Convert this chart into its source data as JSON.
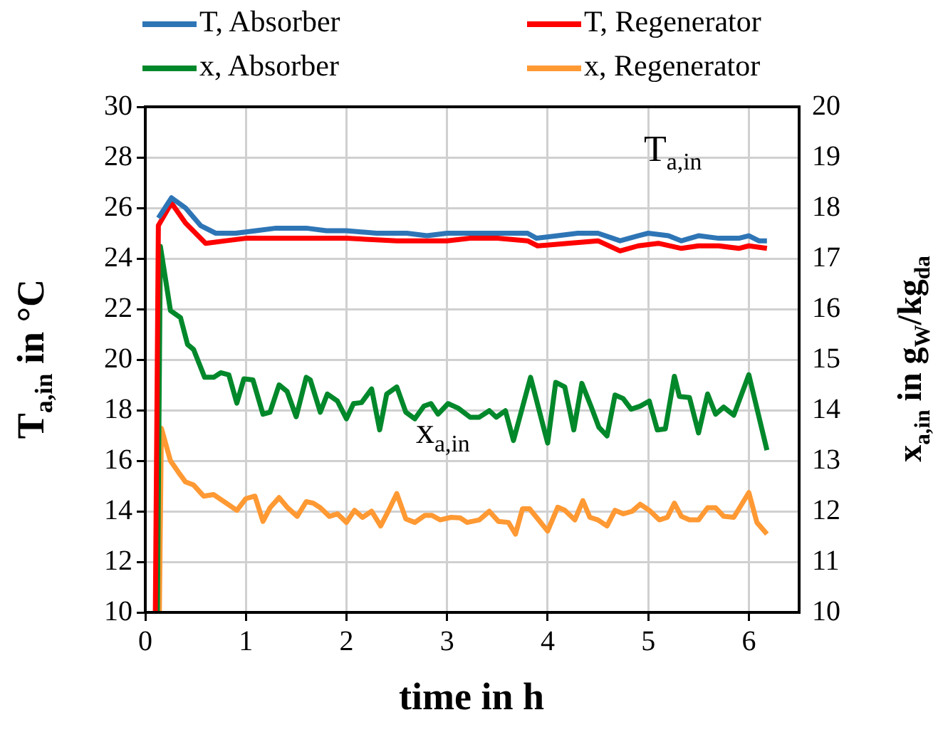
{
  "chart_data": {
    "type": "line",
    "xlabel": "time in h",
    "ylabel": "T$_{a,in}$ in °C",
    "y2label": "x$_{a,in}$ in g$_{W}$/kg$_{da}$",
    "xlim": [
      0,
      6.5
    ],
    "xticks": [
      0,
      1,
      2,
      3,
      4,
      5,
      6
    ],
    "ylim": [
      10,
      30
    ],
    "yticks": [
      10,
      12,
      14,
      16,
      18,
      20,
      22,
      24,
      26,
      28,
      30
    ],
    "y2lim": [
      10,
      20
    ],
    "y2ticks": [
      10,
      11,
      12,
      13,
      14,
      15,
      16,
      17,
      18,
      19,
      20
    ],
    "grid": true,
    "legend": "top",
    "marker": "none",
    "line_style": "solid",
    "annotations": [
      "T$_{a,in}$",
      "x$_{a,in}$"
    ],
    "series": [
      {
        "name": "T, Absorber",
        "color": "#2e75b6",
        "x": [
          0.13,
          0.26,
          0.4,
          0.55,
          0.7,
          0.9,
          1.1,
          1.3,
          1.6,
          1.8,
          2.0,
          2.3,
          2.6,
          2.8,
          3.0,
          3.23,
          3.4,
          3.6,
          3.8,
          3.89,
          4.1,
          4.3,
          4.5,
          4.72,
          4.9,
          5.0,
          5.2,
          5.33,
          5.5,
          5.7,
          5.9,
          6.0,
          6.1,
          6.18
        ],
        "values": [
          25.6,
          26.4,
          26.0,
          25.3,
          25.0,
          25.0,
          25.1,
          25.2,
          25.2,
          25.1,
          25.1,
          25.0,
          25.0,
          24.9,
          25.0,
          25.0,
          25.0,
          25.0,
          25.0,
          24.8,
          24.9,
          25.0,
          25.0,
          24.7,
          24.9,
          25.0,
          24.9,
          24.7,
          24.9,
          24.8,
          24.8,
          24.9,
          24.7,
          24.7
        ]
      },
      {
        "name": "T, Regenerator",
        "color": "#ff0000",
        "x": [
          0.1,
          0.13,
          0.26,
          0.4,
          0.6,
          0.8,
          1.0,
          1.5,
          2.0,
          2.5,
          3.0,
          3.23,
          3.5,
          3.8,
          3.9,
          4.2,
          4.5,
          4.72,
          4.9,
          5.1,
          5.33,
          5.5,
          5.7,
          5.9,
          6.0,
          6.18
        ],
        "values": [
          10,
          25.3,
          26.2,
          25.4,
          24.6,
          24.7,
          24.8,
          24.8,
          24.8,
          24.7,
          24.7,
          24.8,
          24.8,
          24.7,
          24.5,
          24.6,
          24.7,
          24.3,
          24.5,
          24.6,
          24.4,
          24.5,
          24.5,
          24.4,
          24.5,
          24.4
        ]
      },
      {
        "name": "x, Absorber",
        "color": "#00882b",
        "axis": "y2",
        "x": [
          0.12,
          0.15,
          0.25,
          0.35,
          0.42,
          0.48,
          0.59,
          0.68,
          0.75,
          0.83,
          0.91,
          0.98,
          1.07,
          1.17,
          1.24,
          1.33,
          1.41,
          1.5,
          1.6,
          1.64,
          1.74,
          1.81,
          1.91,
          2.0,
          2.07,
          2.15,
          2.25,
          2.33,
          2.4,
          2.5,
          2.59,
          2.68,
          2.77,
          2.84,
          2.91,
          3.01,
          3.11,
          3.23,
          3.32,
          3.42,
          3.49,
          3.58,
          3.66,
          3.83,
          4.0,
          4.08,
          4.17,
          4.26,
          4.34,
          4.43,
          4.51,
          4.59,
          4.67,
          4.75,
          4.83,
          4.92,
          5.01,
          5.09,
          5.17,
          5.26,
          5.31,
          5.41,
          5.5,
          5.59,
          5.67,
          5.75,
          5.85,
          6.0,
          6.18
        ],
        "values": [
          10,
          17.24,
          15.97,
          15.83,
          15.3,
          15.2,
          14.65,
          14.65,
          14.74,
          14.7,
          14.14,
          14.62,
          14.6,
          13.92,
          13.96,
          14.5,
          14.37,
          13.87,
          14.65,
          14.6,
          13.96,
          14.32,
          14.18,
          13.83,
          14.13,
          14.15,
          14.42,
          13.61,
          14.32,
          14.46,
          13.96,
          13.83,
          14.08,
          14.13,
          13.92,
          14.13,
          14.04,
          13.86,
          13.86,
          13.99,
          13.86,
          13.99,
          13.4,
          14.65,
          13.35,
          14.55,
          14.46,
          13.61,
          14.53,
          14.08,
          13.66,
          13.49,
          14.3,
          14.23,
          14.02,
          14.08,
          14.18,
          13.61,
          13.63,
          14.67,
          14.27,
          14.25,
          13.55,
          14.32,
          13.92,
          14.06,
          13.9,
          14.7,
          13.21
        ]
      },
      {
        "name": "x, Regenerator",
        "color": "#ff9933",
        "axis": "y2",
        "x": [
          0.14,
          0.16,
          0.25,
          0.33,
          0.4,
          0.48,
          0.58,
          0.68,
          0.79,
          0.91,
          1.0,
          1.09,
          1.17,
          1.24,
          1.33,
          1.41,
          1.51,
          1.6,
          1.67,
          1.74,
          1.83,
          1.91,
          2.0,
          2.08,
          2.16,
          2.25,
          2.34,
          2.42,
          2.5,
          2.59,
          2.68,
          2.78,
          2.85,
          2.93,
          3.04,
          3.13,
          3.2,
          3.32,
          3.42,
          3.51,
          3.61,
          3.68,
          3.75,
          3.82,
          4.0,
          4.1,
          4.17,
          4.27,
          4.35,
          4.42,
          4.5,
          4.59,
          4.67,
          4.75,
          4.84,
          4.92,
          5.01,
          5.11,
          5.19,
          5.26,
          5.33,
          5.41,
          5.5,
          5.59,
          5.67,
          5.75,
          5.85,
          6.0,
          6.08,
          6.18
        ],
        "values": [
          10,
          13.64,
          13.0,
          12.77,
          12.58,
          12.52,
          12.3,
          12.33,
          12.18,
          12.02,
          12.25,
          12.3,
          11.8,
          12.07,
          12.27,
          12.08,
          11.9,
          12.19,
          12.16,
          12.07,
          11.9,
          11.95,
          11.78,
          12.02,
          11.88,
          12.0,
          11.71,
          12.02,
          12.35,
          11.85,
          11.78,
          11.92,
          11.92,
          11.83,
          11.88,
          11.87,
          11.78,
          11.83,
          12.0,
          11.8,
          11.78,
          11.55,
          12.05,
          12.05,
          11.61,
          12.08,
          12.02,
          11.83,
          12.21,
          11.88,
          11.83,
          11.71,
          12.02,
          11.95,
          12.0,
          12.14,
          12.02,
          11.83,
          11.88,
          12.16,
          11.9,
          11.83,
          11.83,
          12.07,
          12.07,
          11.9,
          11.88,
          12.37,
          11.78,
          11.55
        ]
      }
    ]
  }
}
